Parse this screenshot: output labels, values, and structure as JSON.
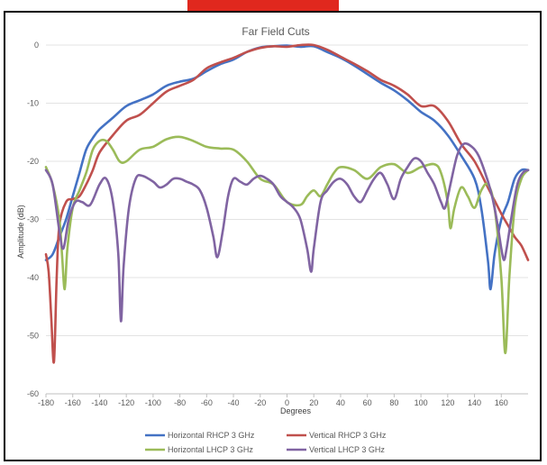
{
  "chart_data": {
    "type": "line",
    "title": "Far Field Cuts",
    "xlabel": "Degrees",
    "ylabel": "Amplitude (dB)",
    "xlim": [
      -180,
      180
    ],
    "ylim": [
      -60,
      0
    ],
    "xticks": [
      "-180",
      "-160",
      "-140",
      "-120",
      "-100",
      "-80",
      "-60",
      "-40",
      "-20",
      "0",
      "20",
      "40",
      "60",
      "80",
      "100",
      "120",
      "140",
      "160"
    ],
    "yticks": [
      "0",
      "-10",
      "-20",
      "-30",
      "-40",
      "-50",
      "-60"
    ],
    "grid": "horizontal",
    "legend_position": "bottom",
    "series": [
      {
        "name": "Horizontal RHCP 3 GHz",
        "color": "#4472c4",
        "points": [
          [
            -180,
            -37
          ],
          [
            -175,
            -36
          ],
          [
            -170,
            -33
          ],
          [
            -165,
            -30
          ],
          [
            -160,
            -26
          ],
          [
            -155,
            -22
          ],
          [
            -150,
            -18
          ],
          [
            -145,
            -16
          ],
          [
            -140,
            -14.5
          ],
          [
            -130,
            -12.5
          ],
          [
            -120,
            -10.5
          ],
          [
            -110,
            -9.5
          ],
          [
            -100,
            -8.5
          ],
          [
            -90,
            -7
          ],
          [
            -80,
            -6.3
          ],
          [
            -70,
            -5.8
          ],
          [
            -60,
            -4.5
          ],
          [
            -50,
            -3.3
          ],
          [
            -40,
            -2.5
          ],
          [
            -30,
            -1.2
          ],
          [
            -20,
            -0.4
          ],
          [
            -10,
            -0.2
          ],
          [
            0,
            -0.1
          ],
          [
            10,
            -0.3
          ],
          [
            20,
            -0.2
          ],
          [
            30,
            -1.2
          ],
          [
            40,
            -2.2
          ],
          [
            50,
            -3.5
          ],
          [
            60,
            -5
          ],
          [
            70,
            -6.5
          ],
          [
            80,
            -7.8
          ],
          [
            90,
            -9.5
          ],
          [
            100,
            -11.5
          ],
          [
            110,
            -13
          ],
          [
            120,
            -15.5
          ],
          [
            130,
            -19
          ],
          [
            140,
            -23
          ],
          [
            145,
            -28
          ],
          [
            150,
            -37
          ],
          [
            152,
            -42
          ],
          [
            155,
            -36
          ],
          [
            160,
            -30
          ],
          [
            165,
            -27
          ],
          [
            170,
            -23
          ],
          [
            175,
            -21.5
          ],
          [
            180,
            -21.5
          ]
        ]
      },
      {
        "name": "Vertical RHCP 3 GHz",
        "color": "#c0504d",
        "points": [
          [
            -180,
            -36
          ],
          [
            -178,
            -39
          ],
          [
            -176,
            -47
          ],
          [
            -174,
            -54.5
          ],
          [
            -172,
            -40
          ],
          [
            -170,
            -31
          ],
          [
            -165,
            -27
          ],
          [
            -160,
            -26.5
          ],
          [
            -155,
            -26
          ],
          [
            -150,
            -24
          ],
          [
            -145,
            -21.5
          ],
          [
            -140,
            -18.5
          ],
          [
            -130,
            -15.5
          ],
          [
            -120,
            -13
          ],
          [
            -110,
            -12
          ],
          [
            -100,
            -10
          ],
          [
            -90,
            -8
          ],
          [
            -80,
            -7
          ],
          [
            -70,
            -6
          ],
          [
            -60,
            -4
          ],
          [
            -50,
            -3
          ],
          [
            -40,
            -2.2
          ],
          [
            -30,
            -1.2
          ],
          [
            -20,
            -0.5
          ],
          [
            -10,
            -0.2
          ],
          [
            0,
            -0.3
          ],
          [
            10,
            0
          ],
          [
            20,
            0
          ],
          [
            30,
            -0.8
          ],
          [
            40,
            -2
          ],
          [
            50,
            -3.2
          ],
          [
            60,
            -4.5
          ],
          [
            70,
            -6
          ],
          [
            80,
            -7
          ],
          [
            90,
            -8.5
          ],
          [
            100,
            -10.5
          ],
          [
            110,
            -10.5
          ],
          [
            120,
            -13
          ],
          [
            130,
            -17
          ],
          [
            140,
            -20
          ],
          [
            150,
            -24.5
          ],
          [
            160,
            -29
          ],
          [
            165,
            -31
          ],
          [
            170,
            -33
          ],
          [
            175,
            -34.5
          ],
          [
            180,
            -37
          ]
        ]
      },
      {
        "name": "Horizontal LHCP 3 GHz",
        "color": "#9bbb59",
        "points": [
          [
            -180,
            -21
          ],
          [
            -175,
            -24
          ],
          [
            -170,
            -30
          ],
          [
            -168,
            -36
          ],
          [
            -166,
            -42
          ],
          [
            -164,
            -35
          ],
          [
            -160,
            -28
          ],
          [
            -155,
            -25
          ],
          [
            -150,
            -22
          ],
          [
            -145,
            -18
          ],
          [
            -140,
            -16.5
          ],
          [
            -135,
            -16.5
          ],
          [
            -130,
            -18
          ],
          [
            -125,
            -20
          ],
          [
            -120,
            -20
          ],
          [
            -110,
            -18
          ],
          [
            -100,
            -17.5
          ],
          [
            -90,
            -16.2
          ],
          [
            -80,
            -15.8
          ],
          [
            -70,
            -16.5
          ],
          [
            -60,
            -17.5
          ],
          [
            -50,
            -17.8
          ],
          [
            -40,
            -18
          ],
          [
            -30,
            -20
          ],
          [
            -20,
            -23
          ],
          [
            -10,
            -24
          ],
          [
            0,
            -27
          ],
          [
            10,
            -27.5
          ],
          [
            15,
            -26
          ],
          [
            20,
            -25
          ],
          [
            25,
            -26
          ],
          [
            30,
            -24
          ],
          [
            35,
            -22
          ],
          [
            40,
            -21
          ],
          [
            50,
            -21.5
          ],
          [
            60,
            -23
          ],
          [
            70,
            -21
          ],
          [
            80,
            -20.5
          ],
          [
            90,
            -22
          ],
          [
            100,
            -21
          ],
          [
            110,
            -20.5
          ],
          [
            115,
            -22
          ],
          [
            120,
            -27
          ],
          [
            122,
            -31.5
          ],
          [
            125,
            -28
          ],
          [
            130,
            -24.5
          ],
          [
            135,
            -26
          ],
          [
            140,
            -28
          ],
          [
            145,
            -25
          ],
          [
            150,
            -24
          ],
          [
            155,
            -28
          ],
          [
            160,
            -40
          ],
          [
            163,
            -53
          ],
          [
            166,
            -40
          ],
          [
            170,
            -28
          ],
          [
            175,
            -23
          ],
          [
            180,
            -21.5
          ]
        ]
      },
      {
        "name": "Vertical LHCP 3 GHz",
        "color": "#8064a2",
        "points": [
          [
            -180,
            -21.5
          ],
          [
            -175,
            -24
          ],
          [
            -170,
            -32
          ],
          [
            -167,
            -35
          ],
          [
            -163,
            -30
          ],
          [
            -158,
            -27
          ],
          [
            -153,
            -27
          ],
          [
            -147,
            -27.5
          ],
          [
            -140,
            -24
          ],
          [
            -135,
            -23
          ],
          [
            -130,
            -27
          ],
          [
            -126,
            -36
          ],
          [
            -124,
            -47.5
          ],
          [
            -122,
            -38
          ],
          [
            -118,
            -28
          ],
          [
            -113,
            -23
          ],
          [
            -108,
            -22.5
          ],
          [
            -100,
            -23.5
          ],
          [
            -95,
            -24.5
          ],
          [
            -90,
            -24
          ],
          [
            -85,
            -23
          ],
          [
            -80,
            -23
          ],
          [
            -75,
            -23.5
          ],
          [
            -70,
            -24
          ],
          [
            -65,
            -25
          ],
          [
            -60,
            -28
          ],
          [
            -55,
            -33
          ],
          [
            -52,
            -36.5
          ],
          [
            -48,
            -32
          ],
          [
            -44,
            -26
          ],
          [
            -40,
            -23
          ],
          [
            -35,
            -23.5
          ],
          [
            -30,
            -24
          ],
          [
            -25,
            -23
          ],
          [
            -20,
            -22.5
          ],
          [
            -15,
            -23
          ],
          [
            -10,
            -24
          ],
          [
            -5,
            -26
          ],
          [
            0,
            -27
          ],
          [
            5,
            -28
          ],
          [
            10,
            -30
          ],
          [
            15,
            -35
          ],
          [
            18,
            -39
          ],
          [
            20,
            -35
          ],
          [
            25,
            -27
          ],
          [
            30,
            -25
          ],
          [
            35,
            -23.5
          ],
          [
            40,
            -23
          ],
          [
            45,
            -24
          ],
          [
            50,
            -26
          ],
          [
            55,
            -27
          ],
          [
            60,
            -25
          ],
          [
            65,
            -23
          ],
          [
            70,
            -22
          ],
          [
            75,
            -24
          ],
          [
            80,
            -26.5
          ],
          [
            85,
            -23
          ],
          [
            90,
            -21
          ],
          [
            95,
            -19.5
          ],
          [
            100,
            -20
          ],
          [
            105,
            -22
          ],
          [
            110,
            -24
          ],
          [
            115,
            -27
          ],
          [
            118,
            -28
          ],
          [
            122,
            -24
          ],
          [
            127,
            -19
          ],
          [
            132,
            -17
          ],
          [
            138,
            -17.5
          ],
          [
            143,
            -19
          ],
          [
            148,
            -22
          ],
          [
            152,
            -25
          ],
          [
            155,
            -28
          ],
          [
            158,
            -32
          ],
          [
            160,
            -35
          ],
          [
            162,
            -37
          ],
          [
            164,
            -35
          ],
          [
            168,
            -29
          ],
          [
            172,
            -24
          ],
          [
            176,
            -22
          ],
          [
            180,
            -21.5
          ]
        ]
      }
    ]
  }
}
